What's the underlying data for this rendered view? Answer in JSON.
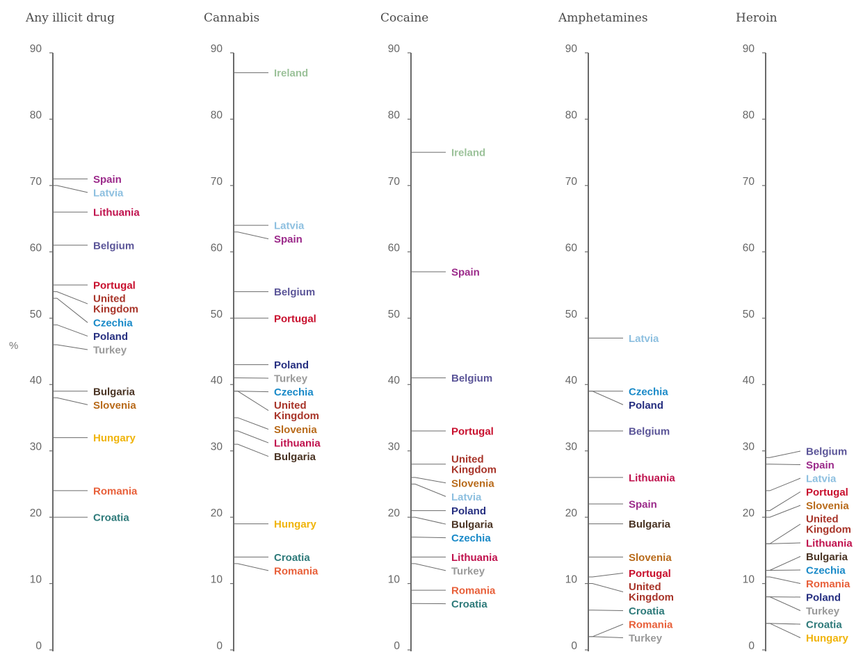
{
  "chart_data": {
    "type": "dot-strip",
    "unit_label": "%",
    "ylim": [
      0,
      90
    ],
    "ticks": [
      "0",
      "10",
      "20",
      "30",
      "40",
      "50",
      "60",
      "70",
      "80",
      "90"
    ],
    "colors": {
      "Spain": "#9b2a8a",
      "Latvia": "#8ec0e0",
      "Lithuania": "#c0134e",
      "Belgium": "#5b5598",
      "Portugal": "#c8102e",
      "United Kingdom": "#a8352a",
      "Czechia": "#1a8ac8",
      "Poland": "#262f80",
      "Turkey": "#9a9a9a",
      "Bulgaria": "#4a3424",
      "Slovenia": "#b86a1a",
      "Hungary": "#f0b40a",
      "Romania": "#e8603a",
      "Croatia": "#2e7a7a",
      "Ireland": "#9cc29a"
    },
    "panels": [
      {
        "title": "Any illicit drug",
        "points": [
          {
            "country": "Spain",
            "label": [
              "Spain"
            ],
            "value": 71
          },
          {
            "country": "Latvia",
            "label": [
              "Latvia"
            ],
            "value": 70
          },
          {
            "country": "Lithuania",
            "label": [
              "Lithuania"
            ],
            "value": 66
          },
          {
            "country": "Belgium",
            "label": [
              "Belgium"
            ],
            "value": 61
          },
          {
            "country": "Portugal",
            "label": [
              "Portugal"
            ],
            "value": 55
          },
          {
            "country": "United Kingdom",
            "label": [
              "United",
              "Kingdom"
            ],
            "value": 54
          },
          {
            "country": "Czechia",
            "label": [
              "Czechia"
            ],
            "value": 53
          },
          {
            "country": "Poland",
            "label": [
              "Poland"
            ],
            "value": 49
          },
          {
            "country": "Turkey",
            "label": [
              "Turkey"
            ],
            "value": 46
          },
          {
            "country": "Bulgaria",
            "label": [
              "Bulgaria"
            ],
            "value": 39
          },
          {
            "country": "Slovenia",
            "label": [
              "Slovenia"
            ],
            "value": 38
          },
          {
            "country": "Hungary",
            "label": [
              "Hungary"
            ],
            "value": 32
          },
          {
            "country": "Romania",
            "label": [
              "Romania"
            ],
            "value": 24
          },
          {
            "country": "Croatia",
            "label": [
              "Croatia"
            ],
            "value": 20
          }
        ]
      },
      {
        "title": "Cannabis",
        "points": [
          {
            "country": "Ireland",
            "label": [
              "Ireland"
            ],
            "value": 87
          },
          {
            "country": "Latvia",
            "label": [
              "Latvia"
            ],
            "value": 64
          },
          {
            "country": "Spain",
            "label": [
              "Spain"
            ],
            "value": 63
          },
          {
            "country": "Belgium",
            "label": [
              "Belgium"
            ],
            "value": 54
          },
          {
            "country": "Portugal",
            "label": [
              "Portugal"
            ],
            "value": 50
          },
          {
            "country": "Poland",
            "label": [
              "Poland"
            ],
            "value": 43
          },
          {
            "country": "Turkey",
            "label": [
              "Turkey"
            ],
            "value": 41
          },
          {
            "country": "Czechia",
            "label": [
              "Czechia"
            ],
            "value": 39
          },
          {
            "country": "United Kingdom",
            "label": [
              "United",
              "Kingdom"
            ],
            "value": 39
          },
          {
            "country": "Slovenia",
            "label": [
              "Slovenia"
            ],
            "value": 35
          },
          {
            "country": "Lithuania",
            "label": [
              "Lithuania"
            ],
            "value": 33
          },
          {
            "country": "Bulgaria",
            "label": [
              "Bulgaria"
            ],
            "value": 31
          },
          {
            "country": "Hungary",
            "label": [
              "Hungary"
            ],
            "value": 19
          },
          {
            "country": "Croatia",
            "label": [
              "Croatia"
            ],
            "value": 14
          },
          {
            "country": "Romania",
            "label": [
              "Romania"
            ],
            "value": 13
          }
        ]
      },
      {
        "title": "Cocaine",
        "points": [
          {
            "country": "Ireland",
            "label": [
              "Ireland"
            ],
            "value": 75
          },
          {
            "country": "Spain",
            "label": [
              "Spain"
            ],
            "value": 57
          },
          {
            "country": "Belgium",
            "label": [
              "Belgium"
            ],
            "value": 41
          },
          {
            "country": "Portugal",
            "label": [
              "Portugal"
            ],
            "value": 33
          },
          {
            "country": "United Kingdom",
            "label": [
              "United",
              "Kingdom"
            ],
            "value": 28
          },
          {
            "country": "Slovenia",
            "label": [
              "Slovenia"
            ],
            "value": 26
          },
          {
            "country": "Latvia",
            "label": [
              "Latvia"
            ],
            "value": 25
          },
          {
            "country": "Poland",
            "label": [
              "Poland"
            ],
            "value": 21
          },
          {
            "country": "Bulgaria",
            "label": [
              "Bulgaria"
            ],
            "value": 20
          },
          {
            "country": "Czechia",
            "label": [
              "Czechia"
            ],
            "value": 17
          },
          {
            "country": "Lithuania",
            "label": [
              "Lithuania"
            ],
            "value": 14
          },
          {
            "country": "Turkey",
            "label": [
              "Turkey"
            ],
            "value": 13
          },
          {
            "country": "Romania",
            "label": [
              "Romania"
            ],
            "value": 9
          },
          {
            "country": "Croatia",
            "label": [
              "Croatia"
            ],
            "value": 7
          }
        ]
      },
      {
        "title": "Amphetamines",
        "points": [
          {
            "country": "Latvia",
            "label": [
              "Latvia"
            ],
            "value": 47
          },
          {
            "country": "Czechia",
            "label": [
              "Czechia"
            ],
            "value": 39
          },
          {
            "country": "Poland",
            "label": [
              "Poland"
            ],
            "value": 39
          },
          {
            "country": "Belgium",
            "label": [
              "Belgium"
            ],
            "value": 33
          },
          {
            "country": "Lithuania",
            "label": [
              "Lithuania"
            ],
            "value": 26
          },
          {
            "country": "Spain",
            "label": [
              "Spain"
            ],
            "value": 22
          },
          {
            "country": "Bulgaria",
            "label": [
              "Bulgaria"
            ],
            "value": 19
          },
          {
            "country": "Slovenia",
            "label": [
              "Slovenia"
            ],
            "value": 14
          },
          {
            "country": "Portugal",
            "label": [
              "Portugal"
            ],
            "value": 11
          },
          {
            "country": "United Kingdom",
            "label": [
              "United",
              "Kingdom"
            ],
            "value": 10
          },
          {
            "country": "Croatia",
            "label": [
              "Croatia"
            ],
            "value": 6
          },
          {
            "country": "Romania",
            "label": [
              "Romania"
            ],
            "value": 2
          },
          {
            "country": "Turkey",
            "label": [
              "Turkey"
            ],
            "value": 2
          }
        ]
      },
      {
        "title": "Heroin",
        "points": [
          {
            "country": "Belgium",
            "label": [
              "Belgium"
            ],
            "value": 29
          },
          {
            "country": "Spain",
            "label": [
              "Spain"
            ],
            "value": 28
          },
          {
            "country": "Latvia",
            "label": [
              "Latvia"
            ],
            "value": 24
          },
          {
            "country": "Portugal",
            "label": [
              "Portugal"
            ],
            "value": 21
          },
          {
            "country": "Slovenia",
            "label": [
              "Slovenia"
            ],
            "value": 20
          },
          {
            "country": "United Kingdom",
            "label": [
              "United",
              "Kingdom"
            ],
            "value": 16
          },
          {
            "country": "Lithuania",
            "label": [
              "Lithuania"
            ],
            "value": 16
          },
          {
            "country": "Bulgaria",
            "label": [
              "Bulgaria"
            ],
            "value": 12
          },
          {
            "country": "Czechia",
            "label": [
              "Czechia"
            ],
            "value": 12
          },
          {
            "country": "Romania",
            "label": [
              "Romania"
            ],
            "value": 11
          },
          {
            "country": "Poland",
            "label": [
              "Poland"
            ],
            "value": 8
          },
          {
            "country": "Turkey",
            "label": [
              "Turkey"
            ],
            "value": 8
          },
          {
            "country": "Croatia",
            "label": [
              "Croatia"
            ],
            "value": 4
          },
          {
            "country": "Hungary",
            "label": [
              "Hungary"
            ],
            "value": 4
          }
        ]
      }
    ]
  }
}
